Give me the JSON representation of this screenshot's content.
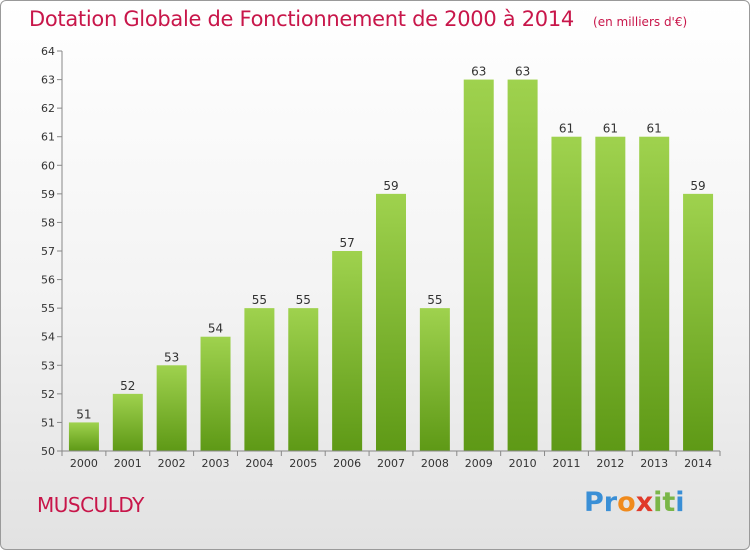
{
  "title": "Dotation Globale de Fonctionnement de 2000 à 2014",
  "subtitle": "(en milliers d'€)",
  "place": "MUSCULDY",
  "brand": {
    "text": "Proxiti",
    "letters": [
      {
        "ch": "P",
        "color": "#3a8fd6"
      },
      {
        "ch": "r",
        "color": "#3a8fd6"
      },
      {
        "ch": "o",
        "color": "#f08a1c"
      },
      {
        "ch": "x",
        "color": "#e03a2a"
      },
      {
        "ch": "i",
        "color": "#7ab648"
      },
      {
        "ch": "t",
        "color": "#7ab648"
      },
      {
        "ch": "i",
        "color": "#3a8fd6"
      }
    ]
  },
  "colors": {
    "accent": "#c8164a",
    "bar_light": "#9fd24e",
    "bar_dark": "#5e9916"
  },
  "chart_data": {
    "type": "bar",
    "categories": [
      "2000",
      "2001",
      "2002",
      "2003",
      "2004",
      "2005",
      "2006",
      "2007",
      "2008",
      "2009",
      "2010",
      "2011",
      "2012",
      "2013",
      "2014"
    ],
    "values": [
      51,
      52,
      53,
      54,
      55,
      55,
      57,
      59,
      55,
      63,
      63,
      61,
      61,
      61,
      59
    ],
    "ylim": [
      50,
      64
    ],
    "yticks": [
      50,
      51,
      52,
      53,
      54,
      55,
      56,
      57,
      58,
      59,
      60,
      61,
      62,
      63,
      64
    ],
    "grid": false,
    "legend": "none"
  }
}
